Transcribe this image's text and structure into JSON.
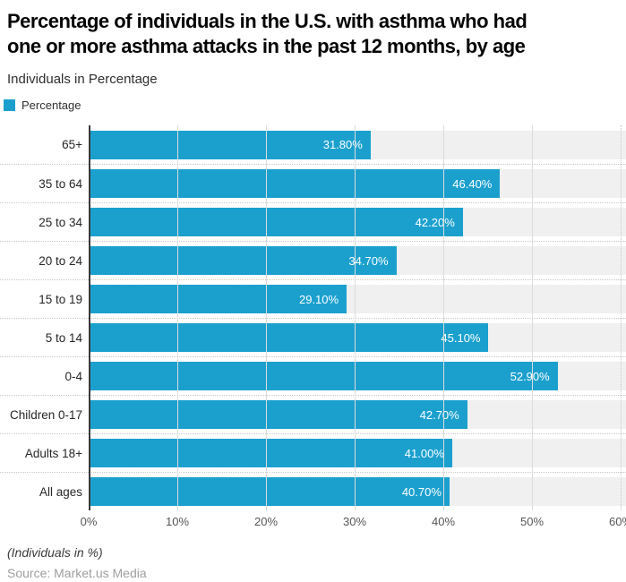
{
  "title": {
    "line1": "Percentage of individuals in the U.S. with asthma who had",
    "line2": "one or more asthma attacks in the past 12 months, by age"
  },
  "subtitle": "Individuals in Percentage",
  "legend": {
    "label": "Percentage"
  },
  "chart_data": {
    "type": "bar",
    "orientation": "horizontal",
    "title": "Percentage of individuals in the U.S. with asthma who had one or more asthma attacks in the past 12 months, by age",
    "subtitle": "Individuals in Percentage",
    "series_name": "Percentage",
    "categories": [
      "65+",
      "35 to 64",
      "25 to 34",
      "20 to 24",
      "15 to 19",
      "5 to 14",
      "0-4",
      "Children 0-17",
      "Adults 18+",
      "All ages"
    ],
    "values": [
      31.8,
      46.4,
      42.2,
      34.7,
      29.1,
      45.1,
      52.9,
      42.7,
      41.0,
      40.7
    ],
    "value_labels": [
      "31.80%",
      "46.40%",
      "42.20%",
      "34.70%",
      "29.10%",
      "45.10%",
      "52.90%",
      "42.70%",
      "41.00%",
      "40.70%"
    ],
    "x_ticks": [
      "0%",
      "10%",
      "20%",
      "30%",
      "40%",
      "50%",
      "60%"
    ],
    "xlim": [
      0,
      60
    ],
    "grid": true,
    "legend_position": "top-left",
    "value_labels_inside_bars": true
  },
  "footer": {
    "note": "(Individuals in %)",
    "source": "Source: Market.us Media"
  },
  "colors": {
    "bar": "#1ba0ce",
    "row_band": "#f0f0f0",
    "gridline": "#dcdcdc",
    "axis": "#3a3a3a",
    "value_label": "#ffffff"
  }
}
